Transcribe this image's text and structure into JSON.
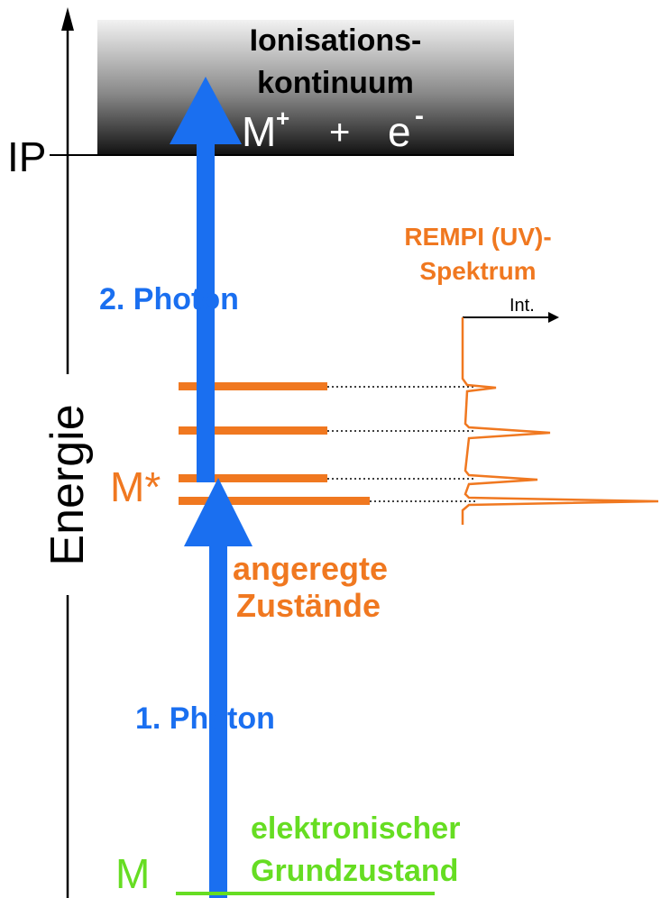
{
  "continuum": {
    "line1": "Ionisations-",
    "line2": "kontinuum",
    "ion": "M",
    "ion_charge": "+",
    "plus": "+",
    "electron": "e",
    "electron_charge": "-"
  },
  "ip_label": "IP",
  "axis_label": "Energie",
  "photon2": "2. Photon",
  "spectrum": {
    "line1": "REMPI (UV)-",
    "line2": "Spektrum",
    "axis": "Int."
  },
  "excited": {
    "symbol": "M*",
    "line1": "angeregte",
    "line2": "Zustände"
  },
  "photon1": "1. Photon",
  "ground": {
    "symbol": "M",
    "line1": "elektronischer",
    "line2": "Grundzustand"
  }
}
